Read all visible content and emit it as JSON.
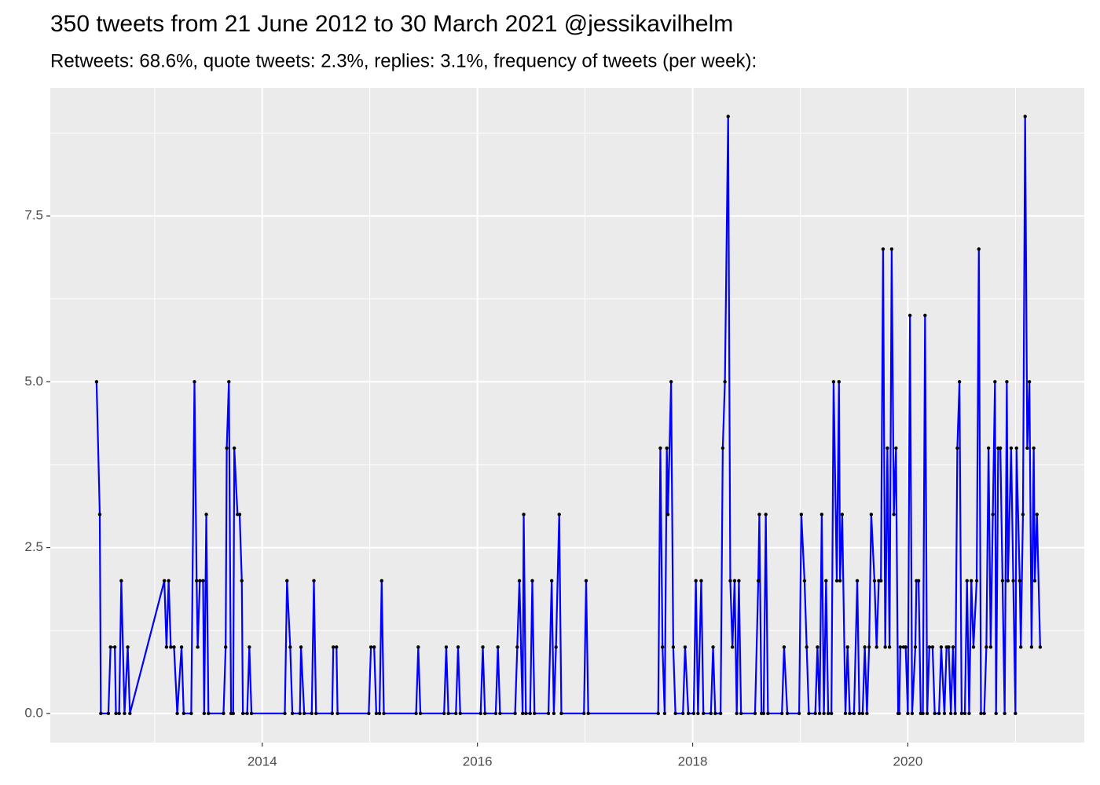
{
  "chart_data": {
    "type": "line",
    "title": "350 tweets from 21 June 2012 to 30 March 2021 @jessikavilhelm",
    "subtitle": "Retweets: 68.6%, quote tweets: 2.3%, replies: 3.1%, frequency of tweets (per week):",
    "xlim": [
      2012.03,
      2021.64
    ],
    "xticks": [
      2014,
      2016,
      2018,
      2020
    ],
    "xminor": [
      2013,
      2015,
      2017,
      2019,
      2021
    ],
    "ylim": [
      -0.44,
      9.43
    ],
    "yticks": [
      {
        "value": 0,
        "label": "0.0"
      },
      {
        "value": 2.5,
        "label": "2.5"
      },
      {
        "value": 5,
        "label": "5.0"
      },
      {
        "value": 7.5,
        "label": "7.5"
      }
    ],
    "yminor": [
      1.25,
      3.75,
      6.25,
      8.75
    ],
    "grid": true,
    "series": [
      {
        "color": "#0000ff",
        "marker_color": "#000000",
        "x": [
          2012.46,
          2012.49,
          2012.5,
          2012.57,
          2012.59,
          2012.63,
          2012.64,
          2012.67,
          2012.69,
          2012.72,
          2012.75,
          2012.77,
          2013.09,
          2013.11,
          2013.13,
          2013.15,
          2013.18,
          2013.21,
          2013.25,
          2013.27,
          2013.34,
          2013.37,
          2013.39,
          2013.4,
          2013.42,
          2013.45,
          2013.46,
          2013.48,
          2013.5,
          2013.64,
          2013.66,
          2013.67,
          2013.69,
          2013.71,
          2013.73,
          2013.74,
          2013.77,
          2013.79,
          2013.81,
          2013.82,
          2013.86,
          2013.88,
          2013.9,
          2014.21,
          2014.23,
          2014.26,
          2014.28,
          2014.35,
          2014.36,
          2014.39,
          2014.46,
          2014.48,
          2014.5,
          2014.65,
          2014.66,
          2014.69,
          2014.7,
          2014.99,
          2015.01,
          2015.04,
          2015.06,
          2015.09,
          2015.11,
          2015.13,
          2015.43,
          2015.45,
          2015.47,
          2015.69,
          2015.71,
          2015.73,
          2015.8,
          2015.82,
          2015.84,
          2016.03,
          2016.05,
          2016.07,
          2016.17,
          2016.19,
          2016.21,
          2016.35,
          2016.37,
          2016.39,
          2016.42,
          2016.43,
          2016.45,
          2016.49,
          2016.51,
          2016.53,
          2016.66,
          2016.69,
          2016.71,
          2016.73,
          2016.76,
          2016.78,
          2016.99,
          2017.01,
          2017.03,
          2017.68,
          2017.7,
          2017.72,
          2017.74,
          2017.76,
          2017.77,
          2017.8,
          2017.82,
          2017.84,
          2017.91,
          2017.93,
          2017.96,
          2018.01,
          2018.03,
          2018.05,
          2018.08,
          2018.1,
          2018.17,
          2018.19,
          2018.21,
          2018.26,
          2018.28,
          2018.3,
          2018.33,
          2018.35,
          2018.37,
          2018.39,
          2018.41,
          2018.43,
          2018.45,
          2018.58,
          2018.61,
          2018.62,
          2018.64,
          2018.66,
          2018.68,
          2018.7,
          2018.83,
          2018.85,
          2018.88,
          2018.99,
          2019.01,
          2019.04,
          2019.06,
          2019.08,
          2019.14,
          2019.16,
          2019.18,
          2019.2,
          2019.22,
          2019.24,
          2019.26,
          2019.29,
          2019.31,
          2019.34,
          2019.36,
          2019.37,
          2019.39,
          2019.42,
          2019.44,
          2019.46,
          2019.5,
          2019.53,
          2019.55,
          2019.58,
          2019.6,
          2019.62,
          2019.64,
          2019.66,
          2019.69,
          2019.71,
          2019.73,
          2019.75,
          2019.77,
          2019.79,
          2019.81,
          2019.83,
          2019.85,
          2019.87,
          2019.89,
          2019.91,
          2019.92,
          2019.93,
          2019.96,
          2019.98,
          2020.0,
          2020.02,
          2020.04,
          2020.07,
          2020.08,
          2020.1,
          2020.12,
          2020.14,
          2020.16,
          2020.18,
          2020.2,
          2020.23,
          2020.25,
          2020.29,
          2020.31,
          2020.34,
          2020.36,
          2020.38,
          2020.4,
          2020.42,
          2020.44,
          2020.46,
          2020.48,
          2020.5,
          2020.53,
          2020.55,
          2020.57,
          2020.59,
          2020.61,
          2020.64,
          2020.66,
          2020.68,
          2020.71,
          2020.73,
          2020.75,
          2020.77,
          2020.79,
          2020.81,
          2020.82,
          2020.84,
          2020.86,
          2020.88,
          2020.9,
          2020.92,
          2020.93,
          2020.96,
          2020.98,
          2021.0,
          2021.01,
          2021.04,
          2021.05,
          2021.07,
          2021.09,
          2021.11,
          2021.13,
          2021.15,
          2021.17,
          2021.18,
          2021.2,
          2021.23
        ],
        "values": [
          5,
          3,
          0,
          0,
          1,
          1,
          0,
          0,
          2,
          0,
          1,
          0,
          2,
          1,
          2,
          1,
          1,
          0,
          1,
          0,
          0,
          5,
          2,
          1,
          2,
          2,
          0,
          3,
          0,
          0,
          1,
          4,
          5,
          0,
          0,
          4,
          3,
          3,
          2,
          0,
          0,
          1,
          0,
          0,
          2,
          1,
          0,
          0,
          1,
          0,
          0,
          2,
          0,
          0,
          1,
          1,
          0,
          0,
          1,
          1,
          0,
          0,
          2,
          0,
          0,
          1,
          0,
          0,
          1,
          0,
          0,
          1,
          0,
          0,
          1,
          0,
          0,
          1,
          0,
          0,
          1,
          2,
          0,
          3,
          0,
          0,
          2,
          0,
          0,
          2,
          0,
          1,
          3,
          0,
          0,
          2,
          0,
          0,
          4,
          1,
          0,
          4,
          3,
          5,
          1,
          0,
          0,
          1,
          0,
          0,
          2,
          0,
          2,
          0,
          0,
          1,
          0,
          0,
          4,
          5,
          9,
          2,
          1,
          2,
          0,
          2,
          0,
          0,
          2,
          3,
          0,
          0,
          3,
          0,
          0,
          1,
          0,
          0,
          3,
          2,
          1,
          0,
          0,
          1,
          0,
          3,
          0,
          2,
          0,
          0,
          5,
          2,
          5,
          2,
          3,
          0,
          1,
          0,
          0,
          2,
          0,
          0,
          1,
          0,
          1,
          3,
          2,
          1,
          2,
          2,
          7,
          1,
          4,
          1,
          7,
          3,
          4,
          0,
          0,
          1,
          1,
          1,
          0,
          6,
          0,
          1,
          2,
          2,
          0,
          0,
          6,
          0,
          1,
          1,
          0,
          0,
          1,
          0,
          1,
          1,
          0,
          1,
          0,
          4,
          5,
          0,
          0,
          2,
          0,
          2,
          1,
          2,
          7,
          0,
          0,
          1,
          4,
          1,
          3,
          5,
          0,
          4,
          4,
          2,
          0,
          5,
          2,
          4,
          2,
          0,
          4,
          2,
          1,
          3,
          9,
          4,
          5,
          1,
          4,
          2,
          3,
          1
        ]
      }
    ]
  }
}
